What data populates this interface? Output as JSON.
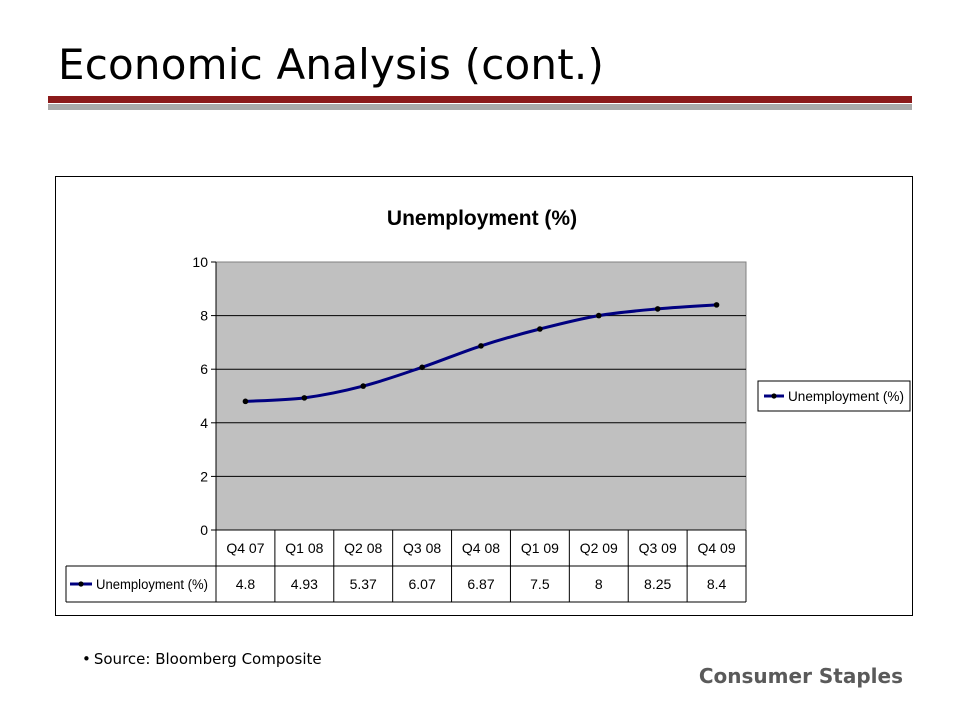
{
  "slide": {
    "title": "Economic Analysis (cont.)",
    "source_bullet": "•",
    "source": "Source: Bloomberg Composite",
    "footer": "Consumer Staples"
  },
  "colors": {
    "title_rule": "#8b1a1a",
    "sub_rule": "#a9a9a9",
    "plot_bg": "#c0c0c0",
    "line": "#000080",
    "marker": "#000000",
    "footer_text": "#5a5a5a"
  },
  "chart_data": {
    "type": "line",
    "title": "Unemployment (%)",
    "categories": [
      "Q4 07",
      "Q1 08",
      "Q2 08",
      "Q3 08",
      "Q4 08",
      "Q1 09",
      "Q2 09",
      "Q3 09",
      "Q4 09"
    ],
    "series": [
      {
        "name": "Unemployment (%)",
        "values": [
          4.8,
          4.93,
          5.37,
          6.07,
          6.87,
          7.5,
          8,
          8.25,
          8.4
        ]
      }
    ],
    "value_labels": [
      "4.8",
      "4.93",
      "5.37",
      "6.07",
      "6.87",
      "7.5",
      "8",
      "8.25",
      "8.4"
    ],
    "y_ticks": [
      0,
      2,
      4,
      6,
      8,
      10
    ],
    "ylim": [
      0,
      10
    ],
    "grid": true,
    "legend": "right",
    "data_table": true,
    "smooth": true
  }
}
